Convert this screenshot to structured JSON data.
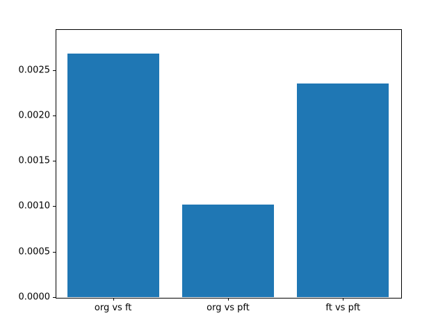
{
  "chart_data": {
    "type": "bar",
    "title": "",
    "xlabel": "",
    "ylabel": "",
    "categories": [
      "org vs ft",
      "org vs pft",
      "ft vs pft"
    ],
    "values": [
      0.00268,
      0.00102,
      0.00235
    ],
    "ylim": [
      0,
      0.00295
    ],
    "yticks": [
      0.0,
      0.0005,
      0.001,
      0.0015,
      0.002,
      0.0025
    ],
    "ytick_decimals": 4,
    "bar_color": "#1f77b4",
    "bar_width_fraction": 0.8,
    "grid": false,
    "legend": "none",
    "background_color": "#ffffff",
    "axis_color": "#000000"
  }
}
